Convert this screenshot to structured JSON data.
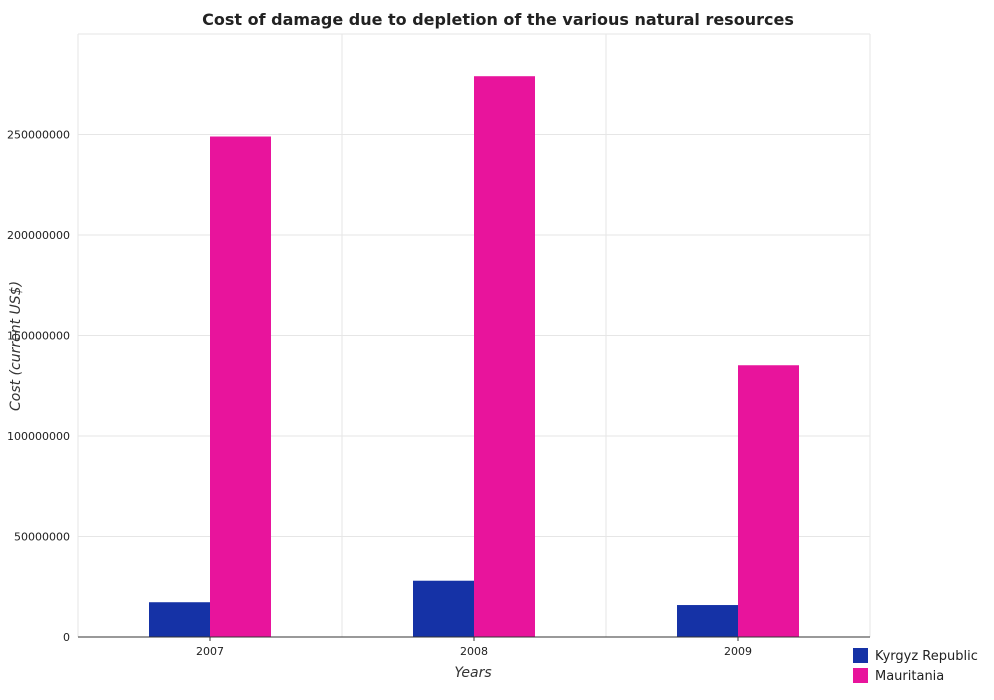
{
  "colors": {
    "kyrgyz": "#1532a6",
    "mauritania": "#e8149c",
    "grid": "#e6e6e6",
    "axis": "#333333"
  },
  "chart_data": {
    "type": "bar",
    "title": "Cost of damage due to depletion of the various natural resources",
    "xlabel": "Years",
    "ylabel": "Cost (current US$)",
    "categories": [
      "2007",
      "2008",
      "2009"
    ],
    "ylim": [
      0,
      300000000
    ],
    "yticks": [
      0,
      50000000,
      100000000,
      150000000,
      200000000,
      250000000
    ],
    "ytick_labels": [
      "0",
      "50000000",
      "100000000",
      "150000000",
      "200000000",
      "250000000"
    ],
    "series": [
      {
        "name": "Kyrgyz Republic",
        "values": [
          17300000,
          28000000,
          15900000
        ],
        "color_key": "kyrgyz"
      },
      {
        "name": "Mauritania",
        "values": [
          249000000,
          279000000,
          135200000
        ],
        "color_key": "mauritania"
      }
    ],
    "grid": true,
    "legend_position": "bottom-right"
  }
}
